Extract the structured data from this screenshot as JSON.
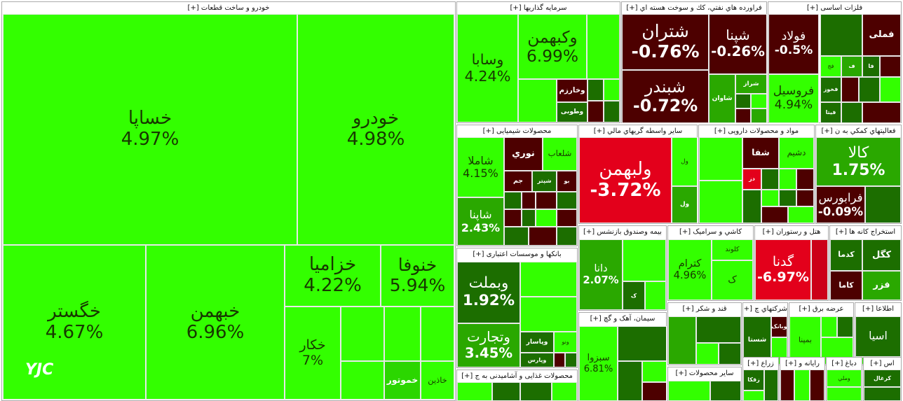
{
  "chart_data": {
    "type": "treemap",
    "watermark": "YJC",
    "groups": [
      {
        "name": "خودرو و ساخت قطعات [+]",
        "tiles": [
          {
            "label": "خساپا",
            "value": 4.97,
            "value_label": "4.97%",
            "color": "#33ff00"
          },
          {
            "label": "خودرو",
            "value": 4.98,
            "value_label": "4.98%",
            "color": "#33ff00"
          },
          {
            "label": "خگستر",
            "value": 4.67,
            "value_label": "4.67%",
            "color": "#33ff00"
          },
          {
            "label": "خبهمن",
            "value": 6.96,
            "value_label": "6.96%",
            "color": "#33ff00"
          },
          {
            "label": "خزامیا",
            "value": 4.22,
            "value_label": "4.22%",
            "color": "#33ff00"
          },
          {
            "label": "خنوفا",
            "value": 5.94,
            "value_label": "5.94%",
            "color": "#33ff00"
          },
          {
            "label": "خکار",
            "value": 7,
            "value_label": "7%",
            "color": "#33ff00"
          },
          {
            "label": "خموتور",
            "color": "#2bd600"
          },
          {
            "label": "خاذین",
            "color": "#33ff00"
          }
        ]
      },
      {
        "name": "سرمایه گذاریها [+]",
        "tiles": [
          {
            "label": "وسابا",
            "value": 4.24,
            "value_label": "4.24%",
            "color": "#33ff00"
          },
          {
            "label": "وکبهمن",
            "value": 6.99,
            "value_label": "6.99%",
            "color": "#33ff00"
          },
          {
            "label": "وخارزم",
            "color": "#4d0000"
          },
          {
            "label": "وطوبی",
            "color": "#1c6e00"
          }
        ]
      },
      {
        "name": "فراورده هاي نفتي، كك و سوخت هسته اي [+]",
        "tiles": [
          {
            "label": "شتران",
            "value": -0.76,
            "value_label": "-0.76%",
            "color": "#4d0000"
          },
          {
            "label": "شبندر",
            "value": -0.72,
            "value_label": "-0.72%",
            "color": "#4d0000"
          },
          {
            "label": "شپنا",
            "value": -0.26,
            "value_label": "-0.26%",
            "color": "#4d0000"
          },
          {
            "label": "شاوان",
            "color": "#2aa800"
          },
          {
            "label": "شراز",
            "color": "#2aa800"
          }
        ]
      },
      {
        "name": "فلزات اساسی [+]",
        "tiles": [
          {
            "label": "فولاد",
            "value": -0.5,
            "value_label": "-0.5%",
            "color": "#4d0000"
          },
          {
            "label": "فروسیل",
            "value": 4.94,
            "value_label": "4.94%",
            "color": "#33ff00"
          },
          {
            "label": "فملی",
            "color": "#4d0000"
          },
          {
            "label": "فج",
            "color": "#33ff00"
          },
          {
            "label": "ف",
            "color": "#2aa800"
          },
          {
            "label": "فا",
            "color": "#1c6e00"
          },
          {
            "label": "فخوز",
            "color": "#1c6e00"
          },
          {
            "label": "فیتا",
            "color": "#1c6e00"
          }
        ]
      },
      {
        "name": "محصولات شیمیایی [+]",
        "tiles": [
          {
            "label": "شاملا",
            "value": 4.15,
            "value_label": "4.15%",
            "color": "#33ff00"
          },
          {
            "label": "نوري",
            "color": "#4d0000"
          },
          {
            "label": "شلعاب",
            "color": "#33ff00"
          },
          {
            "label": "جم",
            "color": "#4d0000"
          },
          {
            "label": "شپتر",
            "color": "#1c6e00"
          },
          {
            "label": "بو",
            "color": "#4d0000"
          },
          {
            "label": "شاپنا",
            "value": 2.43,
            "value_label": "2.43%",
            "color": "#2aa800"
          }
        ]
      },
      {
        "name": "سایر واسطه گریهاي مالي [+]",
        "tiles": [
          {
            "label": "ولبهمن",
            "value": -3.72,
            "value_label": "-3.72%",
            "color": "#e3001b"
          },
          {
            "label": "ول",
            "color": "#33ff00"
          },
          {
            "label": "ول",
            "color": "#2aa800"
          }
        ]
      },
      {
        "name": "مواد و محصولات دارویی [+]",
        "tiles": [
          {
            "label": "شفا",
            "color": "#4d0000"
          },
          {
            "label": "دشیم",
            "color": "#33ff00"
          },
          {
            "label": "دز",
            "color": "#e3001b"
          }
        ]
      },
      {
        "name": "فعالیتهاي كمكي به ن [+]",
        "tiles": [
          {
            "label": "کالا",
            "value": 1.75,
            "value_label": "1.75%",
            "color": "#2aa800"
          },
          {
            "label": "فرابورس",
            "value": -0.09,
            "value_label": "-0.09%",
            "color": "#4d0000"
          }
        ]
      },
      {
        "name": "بانکها و موسسات اعتباری [+]",
        "tiles": [
          {
            "label": "وبملت",
            "value": 1.92,
            "value_label": "1.92%",
            "color": "#1c6e00"
          },
          {
            "label": "وتجارت",
            "value": 3.45,
            "value_label": "3.45%",
            "color": "#2aa800"
          },
          {
            "label": "وپاسار",
            "color": "#1c6e00"
          },
          {
            "label": "وپارس",
            "color": "#1c6e00"
          },
          {
            "label": "ونو",
            "color": "#33ff00"
          }
        ]
      },
      {
        "name": "محصولات غذایی و آشامیدنی به ج [+]",
        "tiles": []
      },
      {
        "name": "بیمه وصندوق بازنشس [+]",
        "tiles": [
          {
            "label": "دانا",
            "value": 2.07,
            "value_label": "2.07%",
            "color": "#2aa800"
          },
          {
            "label": "ک",
            "color": "#1c6e00"
          }
        ]
      },
      {
        "name": "کاشي و سراميک [+]",
        "tiles": [
          {
            "label": "کترام",
            "value": 4.96,
            "value_label": "4.96%",
            "color": "#33ff00"
          },
          {
            "label": "کلوند",
            "color": "#33ff00"
          },
          {
            "label": "ک",
            "color": "#33ff00"
          }
        ]
      },
      {
        "name": "هتل و رستوران [+]",
        "tiles": [
          {
            "label": "گدنا",
            "value": -6.97,
            "value_label": "-6.97%",
            "color": "#e3001b"
          }
        ]
      },
      {
        "name": "استخراج کانه ها [+]",
        "tiles": [
          {
            "label": "کدما",
            "color": "#1c6e00"
          },
          {
            "label": "کگل",
            "color": "#1c6e00"
          },
          {
            "label": "فزر",
            "color": "#2aa800"
          },
          {
            "label": "کاما",
            "color": "#4d0000"
          }
        ]
      },
      {
        "name": "سیمان، آهک و گچ [+]",
        "tiles": [
          {
            "label": "سبزوا",
            "value": 6.81,
            "value_label": "6.81%",
            "color": "#33ff00"
          }
        ]
      },
      {
        "name": "قند و شکر [+]",
        "tiles": []
      },
      {
        "name": "شرکتهاي چ [+]",
        "tiles": [
          {
            "label": "شستا",
            "color": "#1c6e00"
          },
          {
            "label": "وبانک",
            "color": "#4d0000"
          }
        ]
      },
      {
        "name": "عرضه برق [+]",
        "tiles": [
          {
            "label": "بمپنا",
            "color": "#33ff00"
          }
        ]
      },
      {
        "name": "اطلاعا [+]",
        "tiles": [
          {
            "label": "اسیا",
            "color": "#1c6e00"
          }
        ]
      },
      {
        "name": "سایر محصولات [+]",
        "tiles": []
      },
      {
        "name": "زراع [+]",
        "tiles": [
          {
            "label": "زقکا",
            "color": "#1c6e00"
          }
        ]
      },
      {
        "name": "رایانه و [+]",
        "tiles": []
      },
      {
        "name": "دباغ [+]",
        "tiles": [
          {
            "label": "وملي",
            "color": "#33ff00"
          }
        ]
      },
      {
        "name": "اس [+]",
        "tiles": [
          {
            "label": "کرغال",
            "color": "#1c6e00"
          }
        ]
      }
    ]
  }
}
